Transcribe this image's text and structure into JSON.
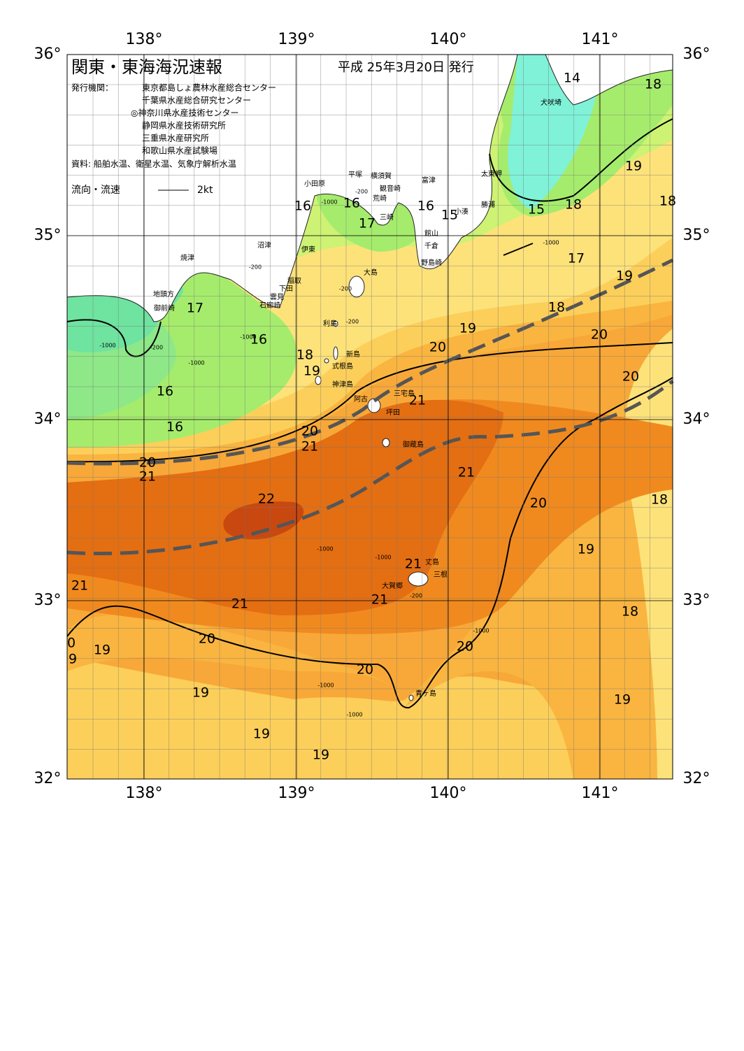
{
  "header": {
    "title": "関東・東海海況速報",
    "date": "平成 25年3月20日 発行",
    "issuer_label": "発行機関：",
    "issuers": [
      "東京都島しょ農林水産総合センター",
      "千葉県水産総合研究センター",
      "◎神奈川県水産技術センター",
      "静岡県水産技術研究所",
      "三重県水産研究所",
      "和歌山県水産試験場"
    ],
    "source": "資料: 船舶水温、衛星水温、気象庁解析水温",
    "legend_label": "流向・流速",
    "legend_scale": "2kt"
  },
  "axes": {
    "longitudes": [
      "138°",
      "139°",
      "140°",
      "141°"
    ],
    "latitudes": [
      "36°",
      "35°",
      "34°",
      "33°",
      "32°"
    ]
  },
  "places": [
    "小田原",
    "平塚",
    "横須賀",
    "富津",
    "観音崎",
    "荒崎",
    "三崎",
    "館山",
    "千倉",
    "小湊",
    "野島崎",
    "勝浦",
    "太東岬",
    "犬吠埼",
    "沼津",
    "伊東",
    "焼津",
    "稲取",
    "下田",
    "雲見",
    "石廊崎",
    "地頭方",
    "御前崎",
    "大島",
    "利島",
    "新島",
    "式根島",
    "神津島",
    "三宅島",
    "阿古",
    "坪田",
    "御蔵島",
    "丈島",
    "三根",
    "大賀郷",
    "青ヶ島"
  ],
  "isotherm_labels": [
    "14",
    "18",
    "19",
    "18",
    "15",
    "16",
    "16",
    "16",
    "17",
    "15",
    "18",
    "17",
    "19",
    "18",
    "17",
    "19",
    "20",
    "20",
    "16",
    "18",
    "19",
    "20",
    "21",
    "16",
    "16",
    "20",
    "21",
    "20",
    "21",
    "21",
    "22",
    "20",
    "18",
    "19",
    "21",
    "21",
    "21",
    "21",
    "18",
    "20",
    "20",
    "0",
    "9",
    "19",
    "20",
    "19",
    "19",
    "19",
    "19"
  ],
  "depth_labels": [
    "-1000",
    "-200",
    "-200",
    "-1000",
    "-200",
    "-1000",
    "-200",
    "-1000",
    "-200",
    "-1000",
    "-1000",
    "-1000",
    "-1000",
    "-200",
    "-1000",
    "-1000"
  ]
}
